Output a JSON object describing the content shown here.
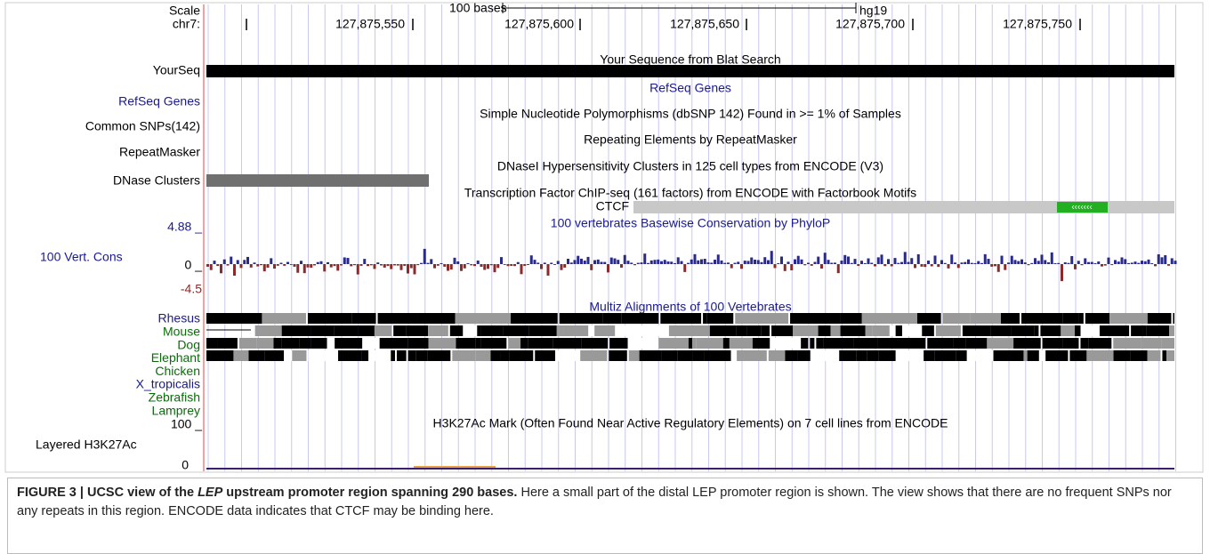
{
  "browser": {
    "scale_label": "Scale",
    "chrom_label": "chr7:",
    "scale_bar_text": "100 bases",
    "assembly": "hg19",
    "positions": [
      "127,875,550",
      "127,875,600",
      "127,875,650",
      "127,875,700",
      "127,875,750"
    ],
    "tracks": {
      "yourseq": {
        "label": "YourSeq",
        "title": "Your Sequence from Blat Search"
      },
      "refseq": {
        "label": "RefSeq Genes",
        "title": "RefSeq Genes"
      },
      "snps": {
        "label": "Common SNPs(142)",
        "title": "Simple Nucleotide Polymorphisms (dbSNP 142) Found in >= 1% of Samples"
      },
      "repeats": {
        "label": "RepeatMasker",
        "title": "Repeating Elements by RepeatMasker"
      },
      "dnase": {
        "label": "DNase Clusters",
        "title": "DNaseI Hypersensitivity Clusters in 125 cell types from ENCODE (V3)"
      },
      "tfbs": {
        "title": "Transcription Factor ChIP-seq (161 factors) from ENCODE with Factorbook Motifs",
        "factor": "CTCF"
      },
      "cons": {
        "label": "100 Vert. Cons",
        "title": "100 vertebrates Basewise Conservation by PhyloP",
        "max": "4.88 _",
        "zero": "0 _",
        "min": "-4.5"
      },
      "multiz": {
        "title": "Multiz Alignments of 100 Vertebrates",
        "species": [
          "Rhesus",
          "Mouse",
          "Dog",
          "Elephant",
          "Chicken",
          "X_tropicalis",
          "Zebrafish",
          "Lamprey"
        ]
      },
      "h3k27ac": {
        "label": "Layered H3K27Ac",
        "title": "H3K27Ac Mark (Often Found Near Active Regulatory Elements) on 7 cell lines from ENCODE",
        "max": "100 _",
        "zero": "0"
      }
    }
  },
  "caption": {
    "bold_prefix": "FIGURE 3 | UCSC view of the ",
    "bold_italic": "LEP",
    "bold_suffix": " upstream promoter region spanning 290 bases.",
    "text": " Here a small part of the distal LEP promoter region is shown. The view shows that there are no frequent SNPs nor any repeats in this region. ENCODE data indicates that CTCF may be binding here."
  }
}
